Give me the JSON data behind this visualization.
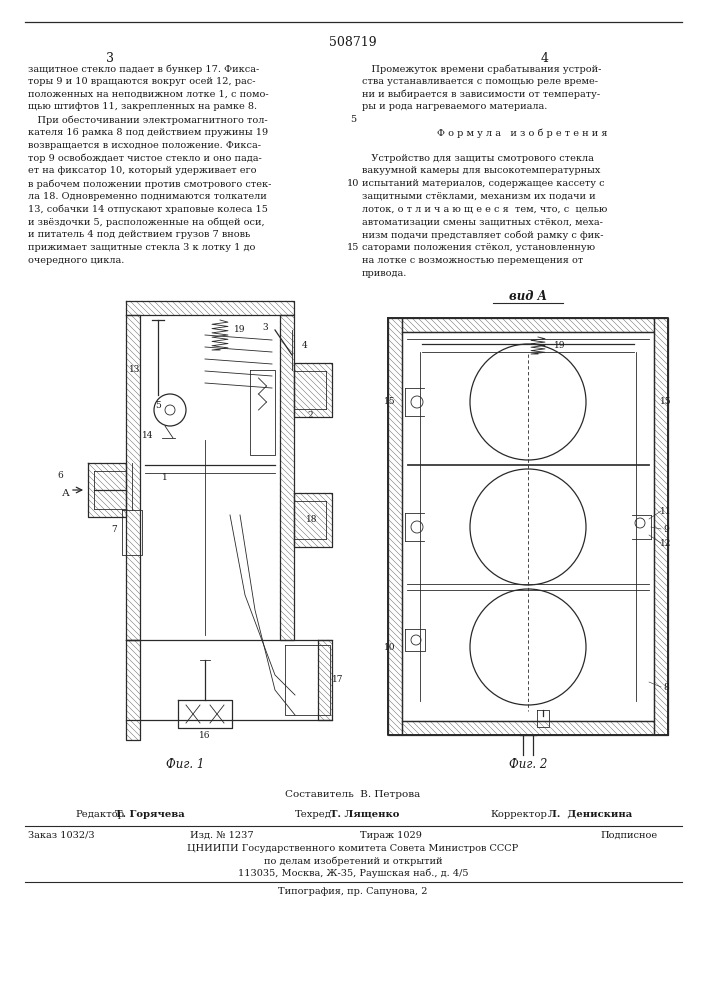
{
  "patent_number": "508719",
  "page_numbers": [
    "3",
    "4"
  ],
  "col_left_text": [
    "защитное стекло падает в бункер 17. Фикса-",
    "торы 9 и 10 вращаются вокруг осей 12, рас-",
    "положенных на неподвижном лотке 1, с помо-",
    "щью штифтов 11, закрепленных на рамке 8.",
    "   При обесточивании электромагнитного тол-",
    "кателя 16 рамка 8 под действием пружины 19",
    "возвращается в исходное положение. Фикса-",
    "тор 9 освобождает чистое стекло и оно пада-",
    "ет на фиксатор 10, который удерживает его",
    "в рабочем положении против смотрового стек-",
    "ла 18. Одновременно поднимаются толкатели",
    "13, собачки 14 отпускают храповые колеса 15",
    "и звёздочки 5, расположенные на общей оси,",
    "и питатель 4 под действием грузов 7 вновь",
    "прижимает защитные стекла 3 к лотку 1 до",
    "очередного цикла."
  ],
  "col_right_text": [
    "   Промежуток времени срабатывания устрой-",
    "ства устанавливается с помощью реле време-",
    "ни и выбирается в зависимости от температу-",
    "ры и рода нагреваемого материала.",
    "",
    "Ф о р м у л а   и з о б р е т е н и я",
    "",
    "   Устройство для защиты смотрового стекла",
    "вакуумной камеры для высокотемпературных",
    "испытаний материалов, содержащее кассету с",
    "защитными стёклами, механизм их подачи и",
    "лоток, о т л и ч а ю щ е е с я  тем, что, с  целью",
    "автоматизации смены защитных стёкол, меха-",
    "низм подачи представляет собой рамку с фик-",
    "саторами положения стёкол, установленную",
    "на лотке с возможностью перемещения от",
    "привода."
  ],
  "line_numbers": {
    "5": 4,
    "10": 9,
    "15": 14
  },
  "fig1_label": "Фиг. 1",
  "fig2_label": "Фиг. 2",
  "view_label": "вид А",
  "staff_line": "Составитель  В. Петрова",
  "editor_label": "Редактор",
  "editor_name": "Т. Горячева",
  "tech_label": "Техред",
  "tech_name": "Т. Лященко",
  "corrector_label": "Корректор",
  "corrector_name": "Л.  Денискина",
  "order_text": "Заказ 1032/3",
  "izd_text": "Изд. № 1237",
  "tirazh_text": "Тираж 1029",
  "podpisano_text": "Подписное",
  "tsniipи_text": "ЦНИИПИ Государственного комитета Совета Министров СССР",
  "po_delam_text": "по делам изобретений и открытий",
  "address_text": "113035, Москва, Ж-35, Раушская наб., д. 4/5",
  "tipografia_text": "Типография, пр. Сапунова, 2",
  "bg_color": "#ffffff",
  "text_color": "#1a1a1a",
  "line_color": "#2a2a2a"
}
